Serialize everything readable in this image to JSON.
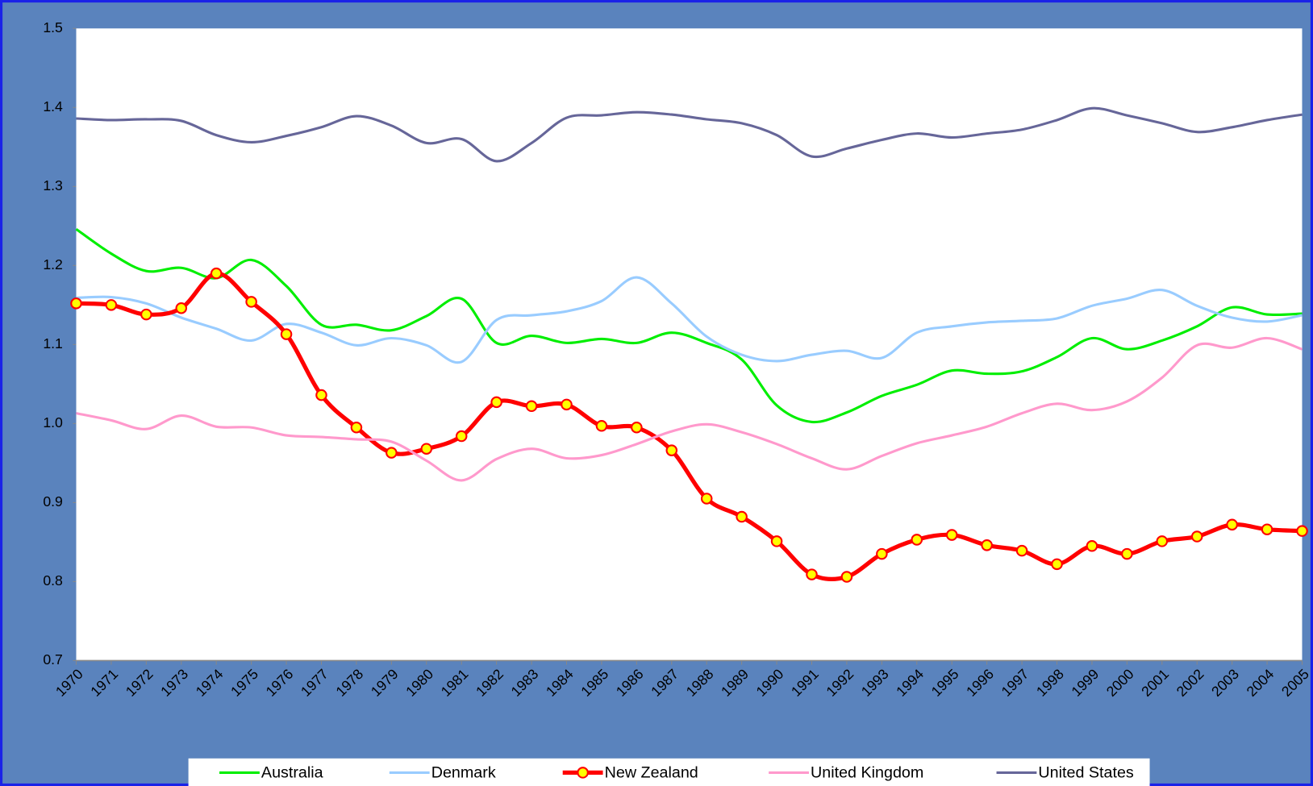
{
  "chart_data": {
    "type": "line",
    "categories": [
      "1970",
      "1971",
      "1972",
      "1973",
      "1974",
      "1975",
      "1976",
      "1977",
      "1978",
      "1979",
      "1980",
      "1981",
      "1982",
      "1983",
      "1984",
      "1985",
      "1986",
      "1987",
      "1988",
      "1989",
      "1990",
      "1991",
      "1992",
      "1993",
      "1994",
      "1995",
      "1996",
      "1997",
      "1998",
      "1999",
      "2000",
      "2001",
      "2002",
      "2003",
      "2004",
      "2005"
    ],
    "ylim": [
      0.7,
      1.5
    ],
    "yticks": [
      0.7,
      0.8,
      0.9,
      {
        "value": 1,
        "label": "1.0"
      },
      1.1,
      1.2,
      1.3,
      1.4,
      1.5
    ],
    "grid": false,
    "legend": "bottom",
    "series": [
      {
        "name": "Australia",
        "color": "#00ee00",
        "marker": false,
        "values": [
          1.246,
          1.215,
          1.193,
          1.197,
          1.184,
          1.207,
          1.174,
          1.125,
          1.125,
          1.118,
          1.136,
          1.158,
          1.102,
          1.111,
          1.102,
          1.107,
          1.102,
          1.115,
          1.102,
          1.081,
          1.023,
          1.002,
          1.014,
          1.035,
          1.049,
          1.067,
          1.063,
          1.066,
          1.084,
          1.108,
          1.094,
          1.105,
          1.123,
          1.147,
          1.138,
          1.139
        ]
      },
      {
        "name": "Denmark",
        "color": "#99ccff",
        "marker": false,
        "values": [
          1.159,
          1.16,
          1.152,
          1.134,
          1.12,
          1.105,
          1.126,
          1.115,
          1.099,
          1.108,
          1.099,
          1.078,
          1.131,
          1.137,
          1.142,
          1.155,
          1.185,
          1.152,
          1.11,
          1.087,
          1.079,
          1.087,
          1.092,
          1.083,
          1.115,
          1.123,
          1.128,
          1.13,
          1.133,
          1.149,
          1.158,
          1.169,
          1.149,
          1.134,
          1.129,
          1.137
        ]
      },
      {
        "name": "New Zealand",
        "color": "#ff0000",
        "marker": true,
        "values": [
          1.152,
          1.15,
          1.138,
          1.146,
          1.19,
          1.154,
          1.113,
          1.036,
          0.995,
          0.963,
          0.968,
          0.984,
          1.027,
          1.022,
          1.024,
          0.997,
          0.995,
          0.966,
          0.905,
          0.882,
          0.851,
          0.809,
          0.806,
          0.835,
          0.853,
          0.859,
          0.846,
          0.839,
          0.822,
          0.845,
          0.835,
          0.851,
          0.857,
          0.872,
          0.866,
          0.864
        ]
      },
      {
        "name": "United Kingdom",
        "color": "#ff99cc",
        "marker": false,
        "values": [
          1.013,
          1.004,
          0.993,
          1.01,
          0.996,
          0.995,
          0.985,
          0.983,
          0.98,
          0.977,
          0.953,
          0.928,
          0.955,
          0.968,
          0.956,
          0.96,
          0.974,
          0.99,
          0.999,
          0.989,
          0.974,
          0.956,
          0.942,
          0.959,
          0.975,
          0.985,
          0.996,
          1.013,
          1.025,
          1.017,
          1.028,
          1.058,
          1.099,
          1.096,
          1.108,
          1.094
        ]
      },
      {
        "name": "United States",
        "color": "#666699",
        "marker": false,
        "values": [
          1.386,
          1.384,
          1.385,
          1.383,
          1.365,
          1.356,
          1.364,
          1.375,
          1.389,
          1.377,
          1.355,
          1.36,
          1.332,
          1.355,
          1.387,
          1.39,
          1.394,
          1.391,
          1.385,
          1.38,
          1.365,
          1.338,
          1.348,
          1.359,
          1.367,
          1.362,
          1.367,
          1.372,
          1.384,
          1.399,
          1.39,
          1.38,
          1.369,
          1.375,
          1.384,
          1.391
        ]
      }
    ]
  }
}
